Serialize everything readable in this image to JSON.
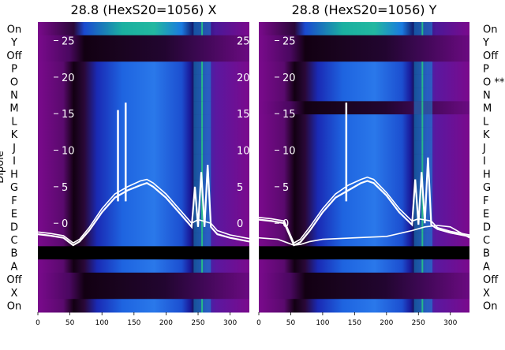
{
  "chart_data": [
    {
      "type": "heatmap",
      "title": "28.8 (HexS20=1056) X",
      "xlim": [
        0,
        330
      ],
      "x_ticks": [
        0,
        50,
        100,
        150,
        200,
        250,
        300
      ],
      "overlay_ylim": [
        -3,
        27
      ],
      "overlay_ticks": [
        0,
        5,
        10,
        15,
        20,
        25
      ],
      "dipole_labels": [
        "On",
        "Y",
        "Off",
        "P",
        "O",
        "N",
        "M",
        "L",
        "K",
        "J",
        "I",
        "H",
        "G",
        "F",
        "E",
        "D",
        "C",
        "B",
        "A",
        "Off",
        "X",
        "On"
      ],
      "ylabel": "Dipole",
      "bright_x_ranges": [
        [
          60,
          230
        ],
        [
          243,
          270
        ]
      ],
      "series": [
        {
          "name": "",
          "x": [
            0,
            20,
            40,
            55,
            65,
            80,
            100,
            120,
            140,
            160,
            170,
            180,
            200,
            220,
            240,
            245,
            250,
            255,
            260,
            265,
            270,
            280,
            300,
            330
          ],
          "y": [
            -1.5,
            -1.7,
            -2.0,
            -3.0,
            -2.5,
            -1.0,
            1.5,
            3.5,
            4.5,
            5.2,
            5.5,
            5.0,
            3.5,
            1.5,
            -0.5,
            5.0,
            -0.5,
            7.0,
            -0.5,
            8.0,
            -0.5,
            -1.5,
            -2.0,
            -2.5
          ]
        },
        {
          "name": "",
          "x": [
            0,
            20,
            40,
            55,
            65,
            80,
            100,
            120,
            140,
            160,
            170,
            180,
            200,
            220,
            240,
            250,
            270,
            280,
            300,
            330
          ],
          "y": [
            -1.2,
            -1.4,
            -1.7,
            -2.7,
            -2.2,
            -0.6,
            2.0,
            4.0,
            5.0,
            5.8,
            6.0,
            5.5,
            4.0,
            2.0,
            0.0,
            0.5,
            0.0,
            -1.0,
            -1.6,
            -2.1
          ]
        }
      ],
      "spike_x": [
        125,
        137
      ],
      "spike_y": [
        15.5,
        16.5
      ]
    },
    {
      "type": "heatmap",
      "title": "28.8 (HexS20=1056) Y",
      "xlim": [
        0,
        330
      ],
      "x_ticks": [
        0,
        50,
        100,
        150,
        200,
        250,
        300
      ],
      "overlay_ylim": [
        -3,
        27
      ],
      "overlay_ticks": [
        0,
        5,
        10,
        15,
        20,
        25
      ],
      "dipole_labels": [
        "On",
        "Y",
        "Off",
        "P",
        "O **",
        "N",
        "M",
        "L",
        "K",
        "J",
        "I",
        "H",
        "G",
        "F",
        "E",
        "D",
        "C",
        "B",
        "A",
        "Off",
        "X",
        "On"
      ],
      "bright_x_ranges": [
        [
          60,
          230
        ],
        [
          243,
          272
        ]
      ],
      "series": [
        {
          "name": "",
          "x": [
            0,
            20,
            40,
            55,
            65,
            80,
            100,
            120,
            140,
            160,
            170,
            180,
            200,
            220,
            240,
            245,
            250,
            255,
            260,
            265,
            270,
            280,
            300,
            330
          ],
          "y": [
            0.5,
            0.3,
            0.0,
            -3.0,
            -2.6,
            -1.0,
            1.5,
            3.5,
            4.5,
            5.5,
            5.8,
            5.5,
            3.8,
            1.5,
            -0.2,
            6.0,
            -0.2,
            7.0,
            0.0,
            9.0,
            -0.2,
            -0.8,
            -1.3,
            -1.8
          ]
        },
        {
          "name": "",
          "x": [
            0,
            20,
            40,
            55,
            65,
            80,
            100,
            120,
            140,
            160,
            170,
            180,
            200,
            220,
            240,
            250,
            270,
            280,
            300,
            330
          ],
          "y": [
            0.8,
            0.6,
            0.3,
            -2.7,
            -2.2,
            -0.5,
            2.0,
            4.0,
            5.2,
            6.0,
            6.3,
            6.0,
            4.2,
            2.0,
            0.3,
            0.6,
            0.3,
            -0.6,
            -1.1,
            -1.6
          ]
        },
        {
          "name": "",
          "x": [
            0,
            30,
            55,
            65,
            80,
            100,
            150,
            200,
            240,
            260,
            280,
            300,
            330
          ],
          "y": [
            -2.0,
            -2.2,
            -3.0,
            -2.9,
            -2.5,
            -2.2,
            -2.0,
            -1.8,
            -1.0,
            -0.5,
            -0.3,
            -0.5,
            -2.0
          ]
        }
      ],
      "spike_x": [
        137
      ],
      "spike_y": [
        16.5
      ]
    }
  ]
}
